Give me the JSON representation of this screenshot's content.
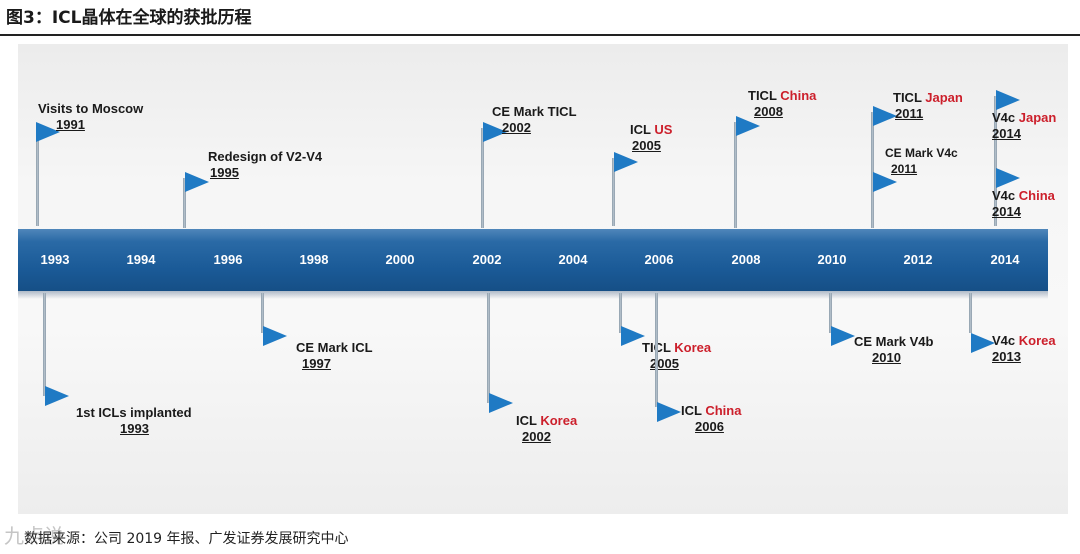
{
  "figure_title": "图3：ICL晶体在全球的获批历程",
  "source_note": "数据来源：公司 2019 年报、广发证券发展研究中心",
  "watermark": "九点说",
  "colors": {
    "band": "#1a5a97",
    "flag": "#1f7ac4",
    "accent_red": "#cc1f2b"
  },
  "timeline": {
    "years": [
      "1993",
      "1994",
      "1996",
      "1998",
      "2000",
      "2002",
      "2004",
      "2006",
      "2008",
      "2010",
      "2012",
      "2014"
    ]
  },
  "events_above": [
    {
      "title": "Visits to Moscow",
      "year": "1991"
    },
    {
      "title": "Redesign of V2-V4",
      "year": "1995"
    },
    {
      "title": "CE Mark TICL",
      "year": "2002"
    },
    {
      "title": "ICL ",
      "country": "US",
      "year": "2005"
    },
    {
      "title": "TICL ",
      "country": "China",
      "year": "2008"
    },
    {
      "title": "TICL ",
      "country": "Japan",
      "year": "2011"
    },
    {
      "title": "CE Mark V4c",
      "year": "2011"
    },
    {
      "title": "V4c ",
      "country": "Japan",
      "year": "2014"
    },
    {
      "title": "V4c ",
      "country": "China",
      "year": "2014"
    }
  ],
  "events_below": [
    {
      "title": "1st ICLs implanted",
      "year": "1993"
    },
    {
      "title": "CE Mark ICL",
      "year": "1997"
    },
    {
      "title": "ICL ",
      "country": "Korea",
      "year": "2002"
    },
    {
      "title": "TICL ",
      "country": "Korea",
      "year": "2005"
    },
    {
      "title": "ICL ",
      "country": "China",
      "year": "2006"
    },
    {
      "title": "CE Mark V4b",
      "year": "2010"
    },
    {
      "title": "V4c ",
      "country": "Korea",
      "year": "2013"
    }
  ]
}
